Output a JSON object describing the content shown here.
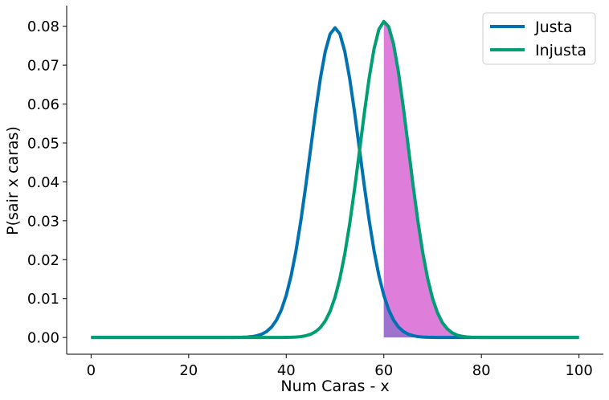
{
  "chart_data": {
    "type": "line",
    "title": "",
    "xlabel": "Num Caras - x",
    "ylabel": "P(sair x caras)",
    "xlim": [
      -5,
      105
    ],
    "ylim": [
      -0.0043,
      0.0853
    ],
    "xticks": [
      0,
      20,
      40,
      60,
      80,
      100
    ],
    "xtick_labels": [
      "0",
      "20",
      "40",
      "60",
      "80",
      "100"
    ],
    "yticks": [
      0.0,
      0.01,
      0.02,
      0.03,
      0.04,
      0.05,
      0.06,
      0.07,
      0.08
    ],
    "ytick_labels": [
      "0.00",
      "0.01",
      "0.02",
      "0.03",
      "0.04",
      "0.05",
      "0.06",
      "0.07",
      "0.08"
    ],
    "grid": false,
    "legend_position": "top-right",
    "series": [
      {
        "name": "Justa",
        "color": "#0072b2",
        "distribution": "binomial",
        "n": 100,
        "p": 0.5,
        "x": [
          0,
          100
        ],
        "peak": {
          "x": 50,
          "y": 0.0796
        }
      },
      {
        "name": "Injusta",
        "color": "#009e73",
        "distribution": "binomial",
        "n": 100,
        "p": 0.6,
        "x": [
          0,
          100
        ],
        "peak": {
          "x": 60,
          "y": 0.0812
        }
      }
    ],
    "shaded_regions": [
      {
        "series": "Injusta",
        "x_range": [
          60,
          100
        ],
        "color": "#da70d6"
      },
      {
        "series": "Justa",
        "x_range": [
          60,
          100
        ],
        "color": "#8a6fc9"
      }
    ]
  }
}
